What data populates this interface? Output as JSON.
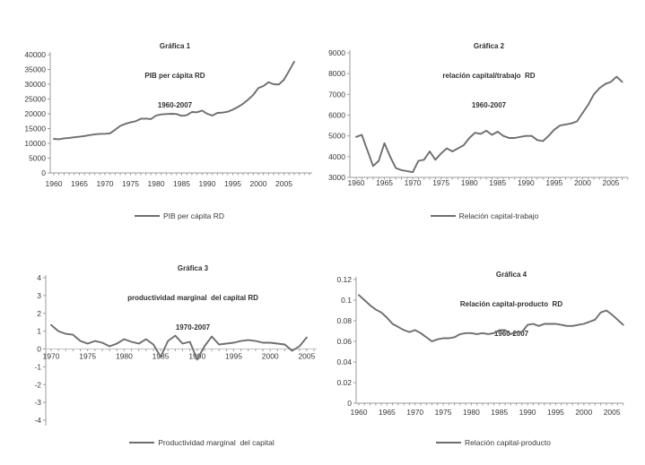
{
  "page": {
    "background": "#ffffff"
  },
  "colors": {
    "series_line": "#6d6e71",
    "axis_line": "#9b9b9d",
    "zero_line": "#c2c2c4",
    "tick_text": "#373737",
    "title_text": "#2f2f31"
  },
  "chart_data": [
    {
      "type": "line",
      "title_lines": [
        "Gráfica 1",
        "PIB per cápita RD",
        "1960-2007"
      ],
      "legend": "PIB per cápita RD",
      "xlabel": "",
      "ylabel": "",
      "ylim": [
        0,
        40000
      ],
      "yticks": [
        0,
        5000,
        10000,
        15000,
        20000,
        25000,
        30000,
        35000,
        40000
      ],
      "xticks": [
        1960,
        1965,
        1970,
        1975,
        1980,
        1985,
        1990,
        1995,
        2000,
        2005
      ],
      "grid": false,
      "legend_position": "bottom",
      "axis_crosses_at_zero": false,
      "x": [
        1960,
        1961,
        1962,
        1963,
        1964,
        1965,
        1966,
        1967,
        1968,
        1969,
        1970,
        1971,
        1972,
        1973,
        1974,
        1975,
        1976,
        1977,
        1978,
        1979,
        1980,
        1981,
        1982,
        1983,
        1984,
        1985,
        1986,
        1987,
        1988,
        1989,
        1990,
        1991,
        1992,
        1993,
        1994,
        1995,
        1996,
        1997,
        1998,
        1999,
        2000,
        2001,
        2002,
        2003,
        2004,
        2005,
        2006,
        2007
      ],
      "values": [
        11500,
        11400,
        11700,
        11850,
        12050,
        12250,
        12500,
        12800,
        13050,
        13200,
        13250,
        13400,
        14600,
        15900,
        16600,
        17100,
        17500,
        18300,
        18400,
        18200,
        19400,
        19800,
        19900,
        20000,
        19900,
        19300,
        19500,
        20600,
        20500,
        21100,
        20000,
        19400,
        20300,
        20400,
        20700,
        21400,
        22300,
        23400,
        24800,
        26400,
        28700,
        29400,
        30700,
        30000,
        29900,
        31500,
        34500,
        37600
      ]
    },
    {
      "type": "line",
      "title_lines": [
        "Gráfica 2",
        "relación capital/trabajo  RD",
        "1960-2007"
      ],
      "legend": "Relación capital-trabajo",
      "xlabel": "",
      "ylabel": "",
      "ylim": [
        3000,
        9000
      ],
      "yticks": [
        3000,
        4000,
        5000,
        6000,
        7000,
        8000,
        9000
      ],
      "xticks": [
        1960,
        1965,
        1970,
        1975,
        1980,
        1985,
        1990,
        1995,
        2000,
        2005
      ],
      "grid": false,
      "legend_position": "bottom",
      "axis_crosses_at_zero": false,
      "x": [
        1960,
        1961,
        1962,
        1963,
        1964,
        1965,
        1966,
        1967,
        1968,
        1969,
        1970,
        1971,
        1972,
        1973,
        1974,
        1975,
        1976,
        1977,
        1978,
        1979,
        1980,
        1981,
        1982,
        1983,
        1984,
        1985,
        1986,
        1987,
        1988,
        1989,
        1990,
        1991,
        1992,
        1993,
        1994,
        1995,
        1996,
        1997,
        1998,
        1999,
        2000,
        2001,
        2002,
        2003,
        2004,
        2005,
        2006,
        2007
      ],
      "values": [
        4950,
        5050,
        4300,
        3550,
        3800,
        4650,
        4000,
        3450,
        3350,
        3300,
        3250,
        3800,
        3850,
        4250,
        3850,
        4150,
        4400,
        4250,
        4400,
        4550,
        4900,
        5150,
        5100,
        5250,
        5050,
        5200,
        5000,
        4900,
        4900,
        4950,
        5000,
        5000,
        4800,
        4750,
        5000,
        5300,
        5500,
        5550,
        5600,
        5700,
        6100,
        6500,
        7000,
        7300,
        7500,
        7600,
        7850,
        7600
      ]
    },
    {
      "type": "line",
      "title_lines": [
        "Gráfica 3",
        "productividad marginal  del capital RD",
        "1970-2007"
      ],
      "legend": "Productividad marginal  del capital",
      "xlabel": "",
      "ylabel": "",
      "ylim": [
        -4,
        4
      ],
      "yticks": [
        -4,
        -3,
        -2,
        -1,
        0,
        1,
        2,
        3,
        4
      ],
      "xticks": [
        1970,
        1975,
        1980,
        1985,
        1990,
        1995,
        2000,
        2005
      ],
      "grid": false,
      "legend_position": "bottom",
      "axis_crosses_at_zero": true,
      "x": [
        1970,
        1971,
        1972,
        1973,
        1974,
        1975,
        1976,
        1977,
        1978,
        1979,
        1980,
        1981,
        1982,
        1983,
        1984,
        1985,
        1986,
        1987,
        1988,
        1989,
        1990,
        1991,
        1992,
        1993,
        1994,
        1995,
        1996,
        1997,
        1998,
        1999,
        2000,
        2001,
        2002,
        2003,
        2004,
        2005
      ],
      "values": [
        1.35,
        1.0,
        0.85,
        0.8,
        0.45,
        0.3,
        0.45,
        0.35,
        0.15,
        0.3,
        0.55,
        0.4,
        0.3,
        0.55,
        0.25,
        -0.45,
        0.45,
        0.75,
        0.3,
        0.4,
        -0.6,
        0.15,
        0.7,
        0.25,
        0.3,
        0.35,
        0.45,
        0.5,
        0.45,
        0.35,
        0.35,
        0.3,
        0.25,
        -0.1,
        0.15,
        0.65
      ]
    },
    {
      "type": "line",
      "title_lines": [
        "Gráfica 4",
        "Relación capital-producto  RD",
        "1960-2007"
      ],
      "legend": "Relación capital-producto",
      "xlabel": "",
      "ylabel": "",
      "ylim": [
        0,
        0.12
      ],
      "yticks": [
        0,
        0.02,
        0.04,
        0.06,
        0.08,
        0.1,
        0.12
      ],
      "xticks": [
        1960,
        1965,
        1970,
        1975,
        1980,
        1985,
        1990,
        1995,
        2000,
        2005
      ],
      "grid": false,
      "legend_position": "bottom",
      "axis_crosses_at_zero": false,
      "x": [
        1960,
        1961,
        1962,
        1963,
        1964,
        1965,
        1966,
        1967,
        1968,
        1969,
        1970,
        1971,
        1972,
        1973,
        1974,
        1975,
        1976,
        1977,
        1978,
        1979,
        1980,
        1981,
        1982,
        1983,
        1984,
        1985,
        1986,
        1987,
        1988,
        1989,
        1990,
        1991,
        1992,
        1993,
        1994,
        1995,
        1996,
        1997,
        1998,
        1999,
        2000,
        2001,
        2002,
        2003,
        2004,
        2005,
        2006,
        2007
      ],
      "values": [
        0.105,
        0.1,
        0.095,
        0.091,
        0.088,
        0.083,
        0.077,
        0.074,
        0.071,
        0.069,
        0.071,
        0.068,
        0.064,
        0.06,
        0.062,
        0.063,
        0.063,
        0.064,
        0.067,
        0.068,
        0.068,
        0.067,
        0.068,
        0.067,
        0.068,
        0.071,
        0.071,
        0.067,
        0.069,
        0.069,
        0.076,
        0.077,
        0.075,
        0.077,
        0.077,
        0.077,
        0.076,
        0.075,
        0.075,
        0.076,
        0.077,
        0.079,
        0.081,
        0.088,
        0.09,
        0.086,
        0.081,
        0.076
      ]
    }
  ]
}
